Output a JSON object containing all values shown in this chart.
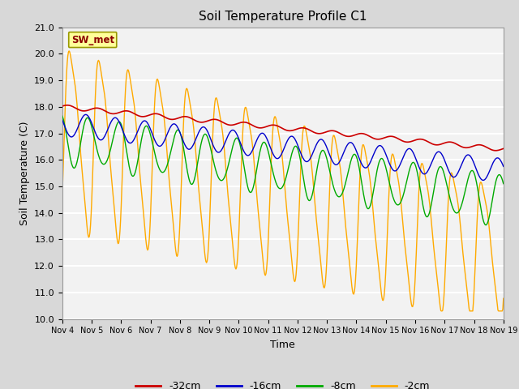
{
  "title": "Soil Temperature Profile C1",
  "xlabel": "Time",
  "ylabel": "Soil Temperature (C)",
  "ylim": [
    10.0,
    21.0
  ],
  "yticks": [
    10.0,
    11.0,
    12.0,
    13.0,
    14.0,
    15.0,
    16.0,
    17.0,
    18.0,
    19.0,
    20.0,
    21.0
  ],
  "xtick_labels": [
    "Nov 4",
    "Nov 5",
    "Nov 6",
    "Nov 7",
    "Nov 8",
    "Nov 9",
    "Nov 10",
    "Nov 11",
    "Nov 12",
    "Nov 13",
    "Nov 14",
    "Nov 15",
    "Nov 16",
    "Nov 17",
    "Nov 18",
    "Nov 19"
  ],
  "legend_label": "SW_met",
  "series_labels": [
    "-32cm",
    "-16cm",
    "-8cm",
    "-2cm"
  ],
  "series_colors": [
    "#cc0000",
    "#0000cc",
    "#00aa00",
    "#ffaa00"
  ],
  "background_color": "#d8d8d8",
  "plot_bg_color": "#f2f2f2",
  "title_fontsize": 11,
  "axis_fontsize": 9,
  "tick_fontsize": 8,
  "legend_fontsize": 9
}
